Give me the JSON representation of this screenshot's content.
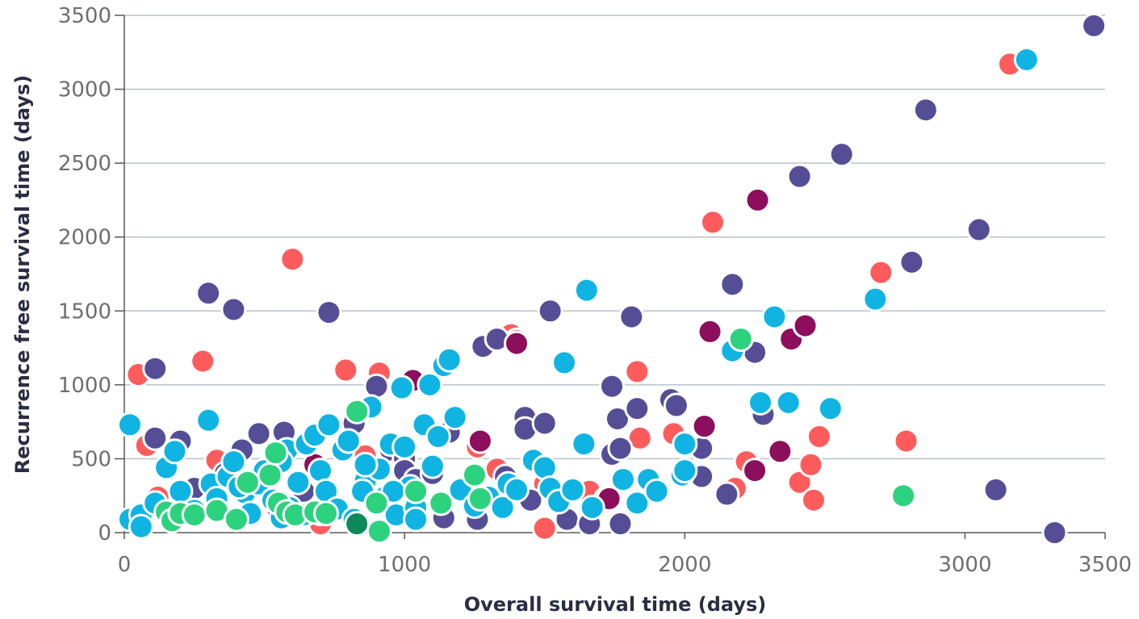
{
  "chart_data": {
    "type": "scatter",
    "title": "",
    "xlabel": "Overall survival time (days)",
    "ylabel": "Recurrence free survival time (days)",
    "xlim": [
      0,
      3500
    ],
    "ylim": [
      0,
      3500
    ],
    "x_ticks": [
      "0",
      "1000",
      "2000",
      "3000",
      "3500"
    ],
    "x_tick_values": [
      0,
      1000,
      2000,
      3000,
      3500
    ],
    "y_ticks": [
      "0",
      "500",
      "1000",
      "1500",
      "2000",
      "2500",
      "3000",
      "3500"
    ],
    "y_tick_values": [
      0,
      500,
      1000,
      1500,
      2000,
      2500,
      3000,
      3500
    ],
    "grid": "horizontal",
    "legend": "none",
    "colors": {
      "red": "#fe5c5c",
      "indigo": "#554e96",
      "magenta": "#8c0e5c",
      "cyan": "#10b4e2",
      "green": "#2cd27e",
      "dark_green": "#0d8a5a",
      "grid": "#b7c3cc",
      "axis": "#595959"
    },
    "series": [
      {
        "color": "red",
        "points": [
          [
            50,
            1070
          ],
          [
            80,
            590
          ],
          [
            280,
            1160
          ],
          [
            600,
            1850
          ],
          [
            790,
            1100
          ],
          [
            910,
            1080
          ],
          [
            1380,
            1340
          ],
          [
            1400,
            1300
          ],
          [
            1500,
            30
          ],
          [
            1660,
            280
          ],
          [
            1830,
            1090
          ],
          [
            1840,
            640
          ],
          [
            1960,
            670
          ],
          [
            2100,
            2100
          ],
          [
            2180,
            300
          ],
          [
            2220,
            480
          ],
          [
            2410,
            340
          ],
          [
            2450,
            460
          ],
          [
            2460,
            220
          ],
          [
            2480,
            650
          ],
          [
            2700,
            1760
          ],
          [
            2790,
            620
          ],
          [
            3160,
            3170
          ],
          [
            120,
            240
          ],
          [
            330,
            490
          ],
          [
            700,
            60
          ],
          [
            860,
            520
          ],
          [
            1260,
            580
          ],
          [
            1330,
            430
          ],
          [
            1500,
            330
          ]
        ]
      },
      {
        "color": "indigo",
        "points": [
          [
            110,
            1110
          ],
          [
            110,
            640
          ],
          [
            200,
            620
          ],
          [
            300,
            1620
          ],
          [
            390,
            1510
          ],
          [
            420,
            560
          ],
          [
            480,
            670
          ],
          [
            570,
            680
          ],
          [
            730,
            1490
          ],
          [
            900,
            990
          ],
          [
            950,
            560
          ],
          [
            1000,
            500
          ],
          [
            1000,
            420
          ],
          [
            1160,
            680
          ],
          [
            1280,
            1260
          ],
          [
            1330,
            1310
          ],
          [
            1430,
            780
          ],
          [
            1430,
            700
          ],
          [
            1500,
            740
          ],
          [
            1520,
            1500
          ],
          [
            1580,
            90
          ],
          [
            1660,
            60
          ],
          [
            1740,
            530
          ],
          [
            1740,
            990
          ],
          [
            1760,
            770
          ],
          [
            1770,
            570
          ],
          [
            1810,
            1460
          ],
          [
            1830,
            840
          ],
          [
            1950,
            900
          ],
          [
            1970,
            860
          ],
          [
            2060,
            570
          ],
          [
            2060,
            380
          ],
          [
            2150,
            260
          ],
          [
            2170,
            1680
          ],
          [
            2250,
            1220
          ],
          [
            2280,
            800
          ],
          [
            2410,
            2410
          ],
          [
            2560,
            2560
          ],
          [
            2810,
            1830
          ],
          [
            2860,
            2860
          ],
          [
            3050,
            2050
          ],
          [
            3110,
            290
          ],
          [
            3320,
            0
          ],
          [
            3460,
            3430
          ],
          [
            250,
            300
          ],
          [
            360,
            400
          ],
          [
            640,
            280
          ],
          [
            820,
            740
          ],
          [
            1040,
            360
          ],
          [
            1140,
            100
          ],
          [
            1260,
            90
          ],
          [
            1360,
            380
          ],
          [
            1450,
            220
          ],
          [
            1770,
            60
          ],
          [
            1720,
            230
          ],
          [
            1100,
            400
          ],
          [
            900,
            200
          ]
        ]
      },
      {
        "color": "magenta",
        "points": [
          [
            1030,
            1030
          ],
          [
            1270,
            620
          ],
          [
            1400,
            1280
          ],
          [
            2090,
            1360
          ],
          [
            2070,
            720
          ],
          [
            2260,
            2250
          ],
          [
            2250,
            420
          ],
          [
            2340,
            550
          ],
          [
            2380,
            1310
          ],
          [
            2430,
            1400
          ],
          [
            1730,
            230
          ],
          [
            680,
            460
          ],
          [
            550,
            150
          ]
        ]
      },
      {
        "color": "cyan",
        "points": [
          [
            20,
            730
          ],
          [
            20,
            90
          ],
          [
            60,
            120
          ],
          [
            60,
            40
          ],
          [
            110,
            200
          ],
          [
            150,
            440
          ],
          [
            180,
            550
          ],
          [
            200,
            280
          ],
          [
            250,
            150
          ],
          [
            300,
            760
          ],
          [
            310,
            330
          ],
          [
            330,
            230
          ],
          [
            370,
            380
          ],
          [
            390,
            480
          ],
          [
            430,
            270
          ],
          [
            450,
            130
          ],
          [
            480,
            330
          ],
          [
            500,
            420
          ],
          [
            530,
            220
          ],
          [
            560,
            100
          ],
          [
            580,
            560
          ],
          [
            620,
            340
          ],
          [
            650,
            600
          ],
          [
            680,
            660
          ],
          [
            700,
            420
          ],
          [
            720,
            280
          ],
          [
            730,
            730
          ],
          [
            760,
            160
          ],
          [
            780,
            560
          ],
          [
            800,
            620
          ],
          [
            820,
            90
          ],
          [
            860,
            350
          ],
          [
            880,
            850
          ],
          [
            910,
            430
          ],
          [
            930,
            240
          ],
          [
            950,
            600
          ],
          [
            970,
            120
          ],
          [
            990,
            980
          ],
          [
            1000,
            580
          ],
          [
            1020,
            310
          ],
          [
            1040,
            170
          ],
          [
            1070,
            730
          ],
          [
            1090,
            1000
          ],
          [
            1100,
            450
          ],
          [
            1120,
            650
          ],
          [
            1140,
            1130
          ],
          [
            1160,
            1170
          ],
          [
            1180,
            780
          ],
          [
            1200,
            290
          ],
          [
            1250,
            180
          ],
          [
            1300,
            240
          ],
          [
            1350,
            170
          ],
          [
            1370,
            330
          ],
          [
            1400,
            290
          ],
          [
            1460,
            490
          ],
          [
            1500,
            440
          ],
          [
            1520,
            300
          ],
          [
            1550,
            210
          ],
          [
            1570,
            1150
          ],
          [
            1600,
            290
          ],
          [
            1640,
            600
          ],
          [
            1650,
            1640
          ],
          [
            1670,
            170
          ],
          [
            1780,
            360
          ],
          [
            1830,
            200
          ],
          [
            1870,
            360
          ],
          [
            1900,
            280
          ],
          [
            1990,
            390
          ],
          [
            2000,
            600
          ],
          [
            2000,
            420
          ],
          [
            2170,
            1230
          ],
          [
            2270,
            880
          ],
          [
            2320,
            1460
          ],
          [
            2370,
            880
          ],
          [
            2520,
            840
          ],
          [
            2680,
            1580
          ],
          [
            3220,
            3200
          ],
          [
            410,
            310
          ],
          [
            560,
            480
          ],
          [
            590,
            170
          ],
          [
            640,
            120
          ],
          [
            700,
            130
          ],
          [
            850,
            280
          ],
          [
            860,
            460
          ],
          [
            960,
            280
          ],
          [
            1040,
            90
          ]
        ]
      },
      {
        "color": "green",
        "points": [
          [
            150,
            140
          ],
          [
            170,
            80
          ],
          [
            200,
            130
          ],
          [
            250,
            120
          ],
          [
            330,
            150
          ],
          [
            400,
            90
          ],
          [
            440,
            340
          ],
          [
            520,
            390
          ],
          [
            540,
            540
          ],
          [
            550,
            200
          ],
          [
            580,
            140
          ],
          [
            610,
            120
          ],
          [
            680,
            140
          ],
          [
            720,
            130
          ],
          [
            830,
            820
          ],
          [
            900,
            200
          ],
          [
            910,
            10
          ],
          [
            1040,
            280
          ],
          [
            1130,
            200
          ],
          [
            1250,
            390
          ],
          [
            1270,
            230
          ],
          [
            2200,
            1310
          ],
          [
            2780,
            250
          ]
        ]
      },
      {
        "color": "dark_green",
        "points": [
          [
            830,
            60
          ]
        ]
      }
    ]
  }
}
